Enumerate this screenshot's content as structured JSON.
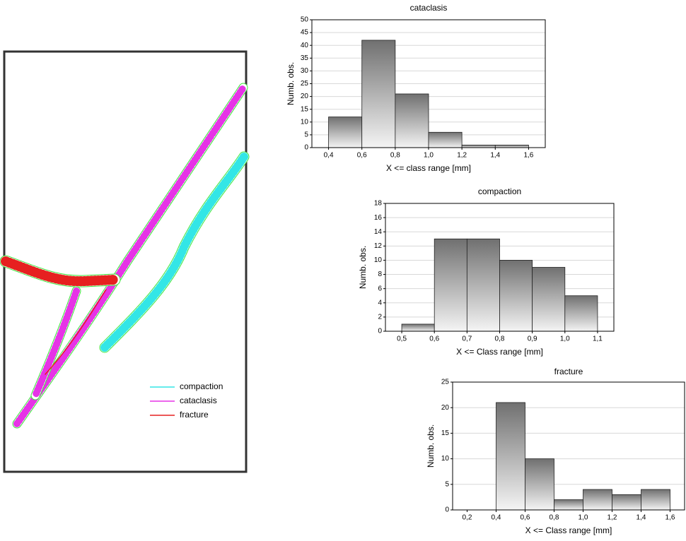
{
  "chart_data": [
    {
      "type": "histogram",
      "title": "cataclasis",
      "xlabel": "X <= class range [mm]",
      "ylabel": "Numb. obs.",
      "bins": [
        0.4,
        0.6,
        0.8,
        1.0,
        1.2,
        1.4,
        1.6
      ],
      "values": [
        12,
        42,
        21,
        6,
        1,
        1
      ],
      "xlim": [
        0.3,
        1.7
      ],
      "ylim": [
        0,
        50
      ],
      "xticks": [
        {
          "value": 0.4,
          "label": "0,4"
        },
        {
          "value": 0.6,
          "label": "0,6"
        },
        {
          "value": 0.8,
          "label": "0,8"
        },
        {
          "value": 1.0,
          "label": "1,0"
        },
        {
          "value": 1.2,
          "label": "1,2"
        },
        {
          "value": 1.4,
          "label": "1,4"
        },
        {
          "value": 1.6,
          "label": "1,6"
        }
      ],
      "yticks": [
        0,
        5,
        10,
        15,
        20,
        25,
        30,
        35,
        40,
        45,
        50
      ],
      "grid": true
    },
    {
      "type": "histogram",
      "title": "compaction",
      "xlabel": "X <= Class range [mm]",
      "ylabel": "Numb. obs.",
      "bins": [
        0.5,
        0.6,
        0.7,
        0.8,
        0.9,
        1.0,
        1.1
      ],
      "values": [
        1,
        13,
        13,
        10,
        9,
        5
      ],
      "xlim": [
        0.45,
        1.15
      ],
      "ylim": [
        0,
        18
      ],
      "xticks": [
        {
          "value": 0.5,
          "label": "0,5"
        },
        {
          "value": 0.6,
          "label": "0,6"
        },
        {
          "value": 0.7,
          "label": "0,7"
        },
        {
          "value": 0.8,
          "label": "0,8"
        },
        {
          "value": 0.9,
          "label": "0,9"
        },
        {
          "value": 1.0,
          "label": "1,0"
        },
        {
          "value": 1.1,
          "label": "1,1"
        }
      ],
      "yticks": [
        0,
        2,
        4,
        6,
        8,
        10,
        12,
        14,
        16,
        18
      ],
      "grid": true
    },
    {
      "type": "histogram",
      "title": "fracture",
      "xlabel": "X <= Class range [mm]",
      "ylabel": "Numb. obs.",
      "bins": [
        0.4,
        0.6,
        0.8,
        1.0,
        1.2,
        1.4,
        1.6
      ],
      "values": [
        21,
        10,
        2,
        4,
        3,
        4
      ],
      "xlim": [
        0.1,
        1.7
      ],
      "ylim": [
        0,
        25
      ],
      "xticks": [
        {
          "value": 0.2,
          "label": "0,2"
        },
        {
          "value": 0.4,
          "label": "0,4"
        },
        {
          "value": 0.6,
          "label": "0,6"
        },
        {
          "value": 0.8,
          "label": "0,8"
        },
        {
          "value": 1.0,
          "label": "1,0"
        },
        {
          "value": 1.2,
          "label": "1,2"
        },
        {
          "value": 1.4,
          "label": "1,4"
        },
        {
          "value": 1.6,
          "label": "1,6"
        }
      ],
      "yticks": [
        0,
        5,
        10,
        15,
        20,
        25
      ],
      "grid": true
    }
  ],
  "map": {
    "legend": [
      {
        "label": "compaction",
        "color": "#33e6e6"
      },
      {
        "label": "cataclasis",
        "color": "#e633e6"
      },
      {
        "label": "fracture",
        "color": "#e62020"
      }
    ]
  }
}
